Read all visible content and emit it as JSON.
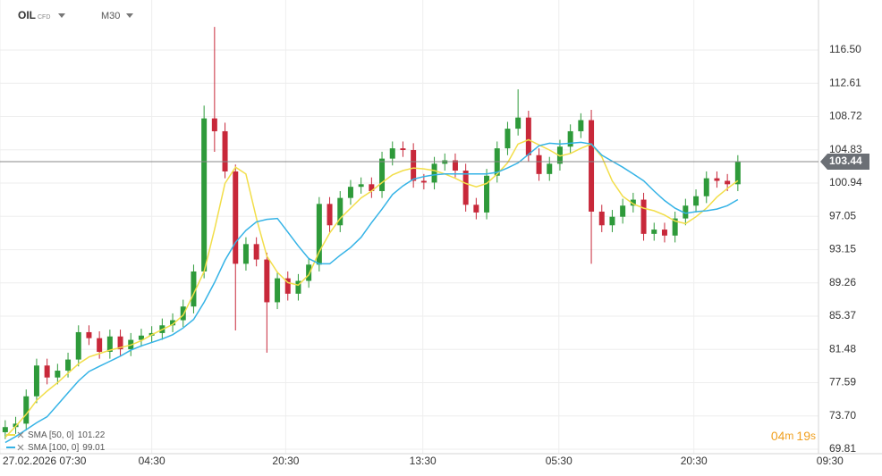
{
  "chart_data": {
    "type": "candlestick",
    "symbol": "OIL",
    "instrument_type": "CFD",
    "timeframe": "M30",
    "countdown": [
      "04",
      "m",
      "19",
      "s"
    ],
    "up_color": "#2e9a3a",
    "down_color": "#c8283a",
    "grid": true,
    "xlim": [
      0,
      80
    ],
    "xticks": [
      {
        "value": 0,
        "label": "27.02.2026 07:30"
      },
      {
        "value": 14.5,
        "label": "04:30"
      },
      {
        "value": 27.3,
        "label": "20:30"
      },
      {
        "value": 40.4,
        "label": "13:30"
      },
      {
        "value": 53.4,
        "label": "05:30"
      },
      {
        "value": 66.3,
        "label": "20:30"
      },
      {
        "value": 79.3,
        "label": "09:30"
      }
    ],
    "ylim": [
      69.29,
      122.35
    ],
    "yticks": [
      {
        "value": 116.5,
        "label": "116.50"
      },
      112.61,
      108.72,
      104.83,
      100.94,
      97.05,
      93.15,
      89.26,
      85.37,
      81.48,
      77.59,
      {
        "value": 73.7,
        "label": "73.70"
      },
      69.81
    ],
    "open": [
      71.8,
      72.4,
      72.8,
      76.0,
      79.6,
      78.2,
      79.0,
      80.3,
      83.5,
      82.8,
      81.2,
      83.0,
      81.5,
      82.6,
      83.1,
      83.4,
      84.3,
      84.9,
      86.5,
      90.6,
      108.5,
      107.0,
      102.3,
      91.5,
      93.8,
      92.0,
      87.0,
      89.8,
      88.0,
      89.5,
      91.4,
      98.5,
      96.0,
      99.2,
      100.5,
      100.8,
      100.0,
      103.8,
      105.0,
      104.8,
      101.2,
      101.0,
      103.2,
      103.6,
      102.4,
      98.4,
      97.5,
      101.8,
      105.0,
      107.3,
      108.6,
      104.2,
      102.0,
      103.2,
      105.2,
      107.0,
      108.3,
      97.6,
      96.0,
      97.0,
      98.3,
      99.0,
      95.0,
      95.5,
      94.8,
      96.8,
      98.3,
      99.4,
      101.5,
      101.2,
      100.8
    ],
    "high": [
      73.2,
      73.6,
      76.8,
      80.4,
      80.4,
      79.8,
      81.1,
      84.3,
      84.3,
      83.6,
      83.8,
      83.8,
      83.4,
      83.9,
      84.2,
      85.1,
      85.7,
      87.3,
      91.4,
      110.0,
      119.2,
      108.0,
      103.1,
      94.6,
      94.6,
      92.8,
      90.6,
      90.6,
      90.3,
      92.2,
      99.3,
      99.3,
      100.0,
      101.3,
      101.6,
      101.6,
      104.6,
      105.8,
      105.8,
      105.6,
      102.0,
      104.0,
      104.4,
      104.4,
      103.2,
      99.2,
      102.6,
      105.8,
      108.1,
      111.9,
      109.4,
      105.0,
      104.0,
      106.0,
      107.8,
      109.1,
      109.5,
      98.4,
      97.8,
      99.1,
      99.8,
      99.8,
      96.3,
      96.3,
      97.6,
      99.1,
      100.2,
      102.3,
      102.3,
      102.0,
      104.2
    ],
    "low": [
      71.0,
      71.6,
      72.0,
      75.2,
      77.4,
      77.4,
      78.2,
      79.5,
      82.0,
      80.4,
      80.4,
      80.7,
      80.7,
      81.8,
      82.3,
      82.6,
      83.5,
      84.1,
      85.7,
      89.8,
      104.6,
      101.5,
      83.7,
      90.7,
      91.2,
      81.1,
      86.2,
      87.2,
      87.2,
      88.7,
      90.6,
      95.2,
      95.2,
      98.4,
      99.7,
      99.2,
      99.2,
      103.0,
      104.0,
      100.4,
      100.2,
      100.2,
      102.4,
      101.6,
      97.6,
      96.7,
      96.7,
      101.0,
      104.2,
      106.5,
      103.4,
      101.2,
      101.2,
      102.4,
      104.4,
      106.2,
      91.5,
      95.2,
      95.2,
      96.2,
      97.5,
      94.2,
      94.2,
      94.0,
      94.0,
      96.0,
      97.5,
      98.6,
      100.4,
      100.0,
      100.0
    ],
    "close": [
      72.4,
      72.8,
      76.0,
      79.6,
      78.2,
      79.0,
      80.3,
      83.5,
      82.8,
      81.2,
      83.0,
      81.5,
      82.6,
      83.1,
      83.4,
      84.3,
      84.9,
      86.5,
      90.6,
      108.5,
      107.0,
      102.3,
      91.5,
      93.8,
      92.0,
      87.0,
      89.8,
      88.0,
      89.5,
      91.4,
      98.5,
      96.0,
      99.2,
      100.5,
      100.8,
      100.0,
      103.8,
      105.0,
      104.8,
      101.2,
      101.0,
      103.2,
      103.6,
      102.4,
      98.4,
      97.5,
      101.8,
      105.0,
      107.3,
      108.6,
      104.2,
      102.0,
      103.2,
      105.2,
      107.0,
      108.3,
      97.6,
      96.0,
      97.0,
      98.3,
      99.0,
      95.0,
      95.5,
      94.8,
      96.8,
      98.3,
      99.4,
      101.5,
      101.2,
      100.8,
      103.44
    ],
    "series": [
      {
        "name": "SMA [50, 0]",
        "color": "#f2de4a",
        "values": [
          71.2,
          72.5,
          73.9,
          75.5,
          76.6,
          77.6,
          78.7,
          79.8,
          80.6,
          81.0,
          81.4,
          81.7,
          82.0,
          82.5,
          83.2,
          83.8,
          84.4,
          85.5,
          88.0,
          90.6,
          95.5,
          100.9,
          102.8,
          102.0,
          96.8,
          92.4,
          90.5,
          89.3,
          89.0,
          90.2,
          92.9,
          95.1,
          96.8,
          98.0,
          99.2,
          100.0,
          101.0,
          101.9,
          102.4,
          102.7,
          102.6,
          102.4,
          102.0,
          101.5,
          100.9,
          100.5,
          100.9,
          102.0,
          103.3,
          105.5,
          106.0,
          105.4,
          104.8,
          104.1,
          104.4,
          105.0,
          105.5,
          104.0,
          101.2,
          99.4,
          98.5,
          98.0,
          97.7,
          97.2,
          96.5,
          96.2,
          97.0,
          98.0,
          99.3,
          100.3,
          101.22
        ]
      },
      {
        "name": "SMA [100, 0]",
        "color": "#35b3e6",
        "values": [
          70.6,
          71.3,
          72.1,
          72.9,
          73.6,
          75.0,
          76.4,
          77.8,
          78.9,
          79.5,
          80.1,
          80.7,
          81.4,
          81.9,
          82.3,
          82.7,
          83.2,
          84.0,
          85.0,
          87.0,
          89.3,
          91.9,
          94.0,
          95.4,
          96.4,
          96.7,
          96.8,
          95.2,
          93.6,
          92.1,
          91.5,
          91.5,
          92.5,
          93.4,
          94.6,
          96.3,
          97.9,
          99.6,
          100.6,
          101.4,
          101.7,
          101.9,
          102.0,
          102.0,
          102.0,
          102.0,
          102.0,
          102.2,
          102.7,
          103.3,
          104.3,
          105.3,
          105.6,
          105.5,
          105.6,
          105.7,
          105.5,
          104.2,
          103.5,
          102.8,
          102.0,
          101.2,
          100.0,
          98.9,
          98.0,
          97.4,
          97.6,
          97.7,
          97.9,
          98.3,
          99.01
        ]
      }
    ]
  }
}
